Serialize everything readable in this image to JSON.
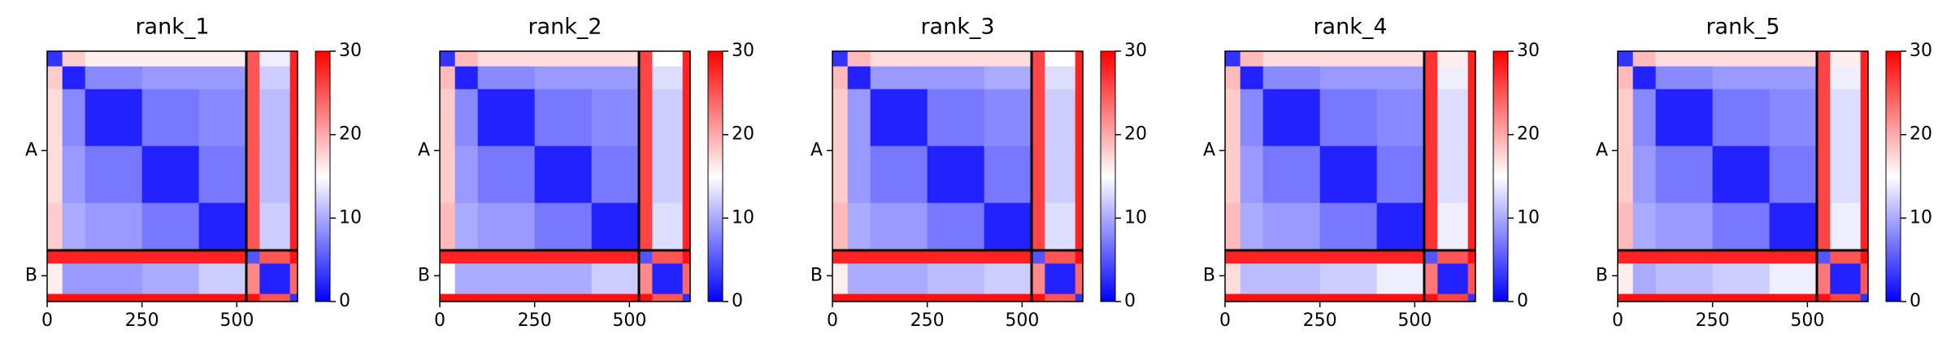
{
  "chart_data": [
    {
      "type": "heatmap",
      "title": "rank_1",
      "colormap": "bwr",
      "x_edges": [
        0,
        40,
        100,
        250,
        400,
        525,
        560,
        640,
        660
      ],
      "y_edges": [
        0,
        40,
        100,
        250,
        400,
        525,
        560,
        640,
        660
      ],
      "values": [
        [
          3,
          18,
          16,
          16,
          16,
          25,
          14,
          28
        ],
        [
          18,
          2,
          8,
          9,
          9,
          25,
          12,
          28
        ],
        [
          17,
          8,
          2,
          7,
          8,
          25,
          11,
          28
        ],
        [
          17,
          9,
          7,
          2,
          7,
          25,
          11,
          28
        ],
        [
          18,
          10,
          9,
          7,
          2,
          25,
          12,
          28
        ],
        [
          28,
          28,
          28,
          28,
          28,
          5,
          25,
          29
        ],
        [
          16,
          9,
          9,
          10,
          12,
          22,
          2,
          24
        ],
        [
          29,
          29,
          29,
          29,
          29,
          29,
          25,
          3
        ]
      ],
      "xlim": [
        0,
        660
      ],
      "ylim": [
        660,
        0
      ],
      "xticks": [
        0,
        250,
        500
      ],
      "yticks": [
        {
          "value": 262,
          "label": "A"
        },
        {
          "value": 592,
          "label": "B"
        }
      ],
      "chain_breaks": [
        525
      ],
      "clim": [
        0,
        30
      ],
      "cticks": [
        0,
        10,
        20,
        30
      ]
    },
    {
      "type": "heatmap",
      "title": "rank_2",
      "colormap": "bwr",
      "x_edges": [
        0,
        40,
        100,
        250,
        400,
        525,
        560,
        640,
        660
      ],
      "y_edges": [
        0,
        40,
        100,
        250,
        400,
        525,
        560,
        640,
        660
      ],
      "values": [
        [
          3,
          19,
          17,
          17,
          17,
          26,
          15,
          28
        ],
        [
          19,
          2,
          8,
          9,
          9,
          26,
          13,
          28
        ],
        [
          18,
          8,
          2,
          7,
          8,
          26,
          12,
          28
        ],
        [
          18,
          9,
          7,
          2,
          7,
          26,
          12,
          28
        ],
        [
          19,
          10,
          9,
          7,
          2,
          26,
          13,
          28
        ],
        [
          28,
          28,
          28,
          28,
          28,
          5,
          25,
          29
        ],
        [
          15,
          10,
          10,
          10,
          12,
          22,
          2,
          24
        ],
        [
          29,
          29,
          29,
          29,
          29,
          29,
          25,
          3
        ]
      ],
      "xlim": [
        0,
        660
      ],
      "ylim": [
        660,
        0
      ],
      "xticks": [
        0,
        250,
        500
      ],
      "yticks": [
        {
          "value": 262,
          "label": "A"
        },
        {
          "value": 592,
          "label": "B"
        }
      ],
      "chain_breaks": [
        525
      ],
      "clim": [
        0,
        30
      ],
      "cticks": [
        0,
        10,
        20,
        30
      ]
    },
    {
      "type": "heatmap",
      "title": "rank_3",
      "colormap": "bwr",
      "x_edges": [
        0,
        40,
        100,
        250,
        400,
        525,
        560,
        640,
        660
      ],
      "y_edges": [
        0,
        40,
        100,
        250,
        400,
        525,
        560,
        640,
        660
      ],
      "values": [
        [
          3,
          19,
          17,
          17,
          17,
          26,
          15,
          28
        ],
        [
          19,
          2,
          9,
          9,
          10,
          26,
          13,
          28
        ],
        [
          18,
          9,
          2,
          7,
          8,
          26,
          12,
          28
        ],
        [
          18,
          9,
          7,
          2,
          7,
          26,
          12,
          28
        ],
        [
          19,
          10,
          9,
          7,
          2,
          26,
          13,
          28
        ],
        [
          28,
          28,
          28,
          28,
          28,
          5,
          25,
          29
        ],
        [
          16,
          10,
          10,
          11,
          12,
          22,
          2,
          24
        ],
        [
          29,
          29,
          29,
          29,
          29,
          29,
          25,
          3
        ]
      ],
      "xlim": [
        0,
        660
      ],
      "ylim": [
        660,
        0
      ],
      "xticks": [
        0,
        250,
        500
      ],
      "yticks": [
        {
          "value": 262,
          "label": "A"
        },
        {
          "value": 592,
          "label": "B"
        }
      ],
      "chain_breaks": [
        525
      ],
      "clim": [
        0,
        30
      ],
      "cticks": [
        0,
        10,
        20,
        30
      ]
    },
    {
      "type": "heatmap",
      "title": "rank_4",
      "colormap": "bwr",
      "x_edges": [
        0,
        40,
        100,
        250,
        400,
        525,
        560,
        640,
        660
      ],
      "y_edges": [
        0,
        40,
        100,
        250,
        400,
        525,
        560,
        640,
        660
      ],
      "values": [
        [
          3,
          19,
          17,
          17,
          17,
          27,
          16,
          28
        ],
        [
          19,
          2,
          8,
          9,
          9,
          27,
          14,
          28
        ],
        [
          18,
          8,
          2,
          7,
          8,
          27,
          13,
          28
        ],
        [
          18,
          9,
          7,
          2,
          7,
          27,
          13,
          28
        ],
        [
          19,
          10,
          9,
          7,
          2,
          27,
          14,
          28
        ],
        [
          28,
          28,
          28,
          28,
          28,
          5,
          25,
          29
        ],
        [
          17,
          11,
          11,
          12,
          14,
          23,
          2,
          25
        ],
        [
          29,
          29,
          29,
          29,
          29,
          29,
          26,
          3
        ]
      ],
      "xlim": [
        0,
        660
      ],
      "ylim": [
        660,
        0
      ],
      "xticks": [
        0,
        250,
        500
      ],
      "yticks": [
        {
          "value": 262,
          "label": "A"
        },
        {
          "value": 592,
          "label": "B"
        }
      ],
      "chain_breaks": [
        525
      ],
      "clim": [
        0,
        30
      ],
      "cticks": [
        0,
        10,
        20,
        30
      ]
    },
    {
      "type": "heatmap",
      "title": "rank_5",
      "colormap": "bwr",
      "x_edges": [
        0,
        40,
        100,
        250,
        400,
        525,
        560,
        640,
        660
      ],
      "y_edges": [
        0,
        40,
        100,
        250,
        400,
        525,
        560,
        640,
        660
      ],
      "values": [
        [
          3,
          19,
          17,
          17,
          17,
          26,
          16,
          28
        ],
        [
          19,
          2,
          8,
          9,
          9,
          26,
          14,
          28
        ],
        [
          18,
          8,
          2,
          7,
          8,
          26,
          13,
          28
        ],
        [
          18,
          9,
          7,
          2,
          7,
          26,
          13,
          28
        ],
        [
          19,
          10,
          9,
          7,
          2,
          26,
          14,
          28
        ],
        [
          28,
          28,
          28,
          28,
          28,
          5,
          25,
          29
        ],
        [
          16,
          10,
          11,
          12,
          14,
          23,
          2,
          25
        ],
        [
          29,
          29,
          29,
          29,
          29,
          29,
          26,
          3
        ]
      ],
      "xlim": [
        0,
        660
      ],
      "ylim": [
        660,
        0
      ],
      "xticks": [
        0,
        250,
        500
      ],
      "yticks": [
        {
          "value": 262,
          "label": "A"
        },
        {
          "value": 592,
          "label": "B"
        }
      ],
      "chain_breaks": [
        525
      ],
      "clim": [
        0,
        30
      ],
      "cticks": [
        0,
        10,
        20,
        30
      ]
    }
  ]
}
